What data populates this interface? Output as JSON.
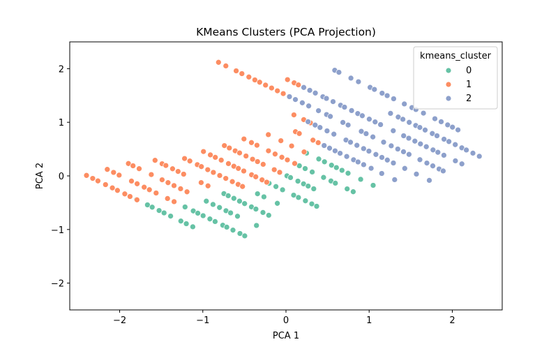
{
  "chart_data": {
    "type": "scatter",
    "title": "KMeans Clusters (PCA Projection)",
    "xlabel": "PCA 1",
    "ylabel": "PCA 2",
    "xlim": [
      -2.6,
      2.6
    ],
    "ylim": [
      -2.5,
      2.5
    ],
    "xticks": [
      -2,
      -1,
      0,
      1,
      2
    ],
    "yticks": [
      -2,
      -1,
      0,
      1,
      2
    ],
    "xtick_labels": [
      "−2",
      "−1",
      "0",
      "1",
      "2"
    ],
    "ytick_labels": [
      "−2",
      "−1",
      "0",
      "1",
      "2"
    ],
    "grid": false,
    "legend": {
      "title": "kmeans_cluster",
      "placement": "top-right",
      "entries": [
        {
          "name": "0",
          "color": "#66c2a5"
        },
        {
          "name": "1",
          "color": "#fc8d62"
        },
        {
          "name": "2",
          "color": "#8da0cb"
        }
      ]
    },
    "structure": {
      "slope": -0.75,
      "line_spacing_x": 0.297,
      "points_per_unit": 14
    },
    "series": [
      {
        "name": "0",
        "color": "#66c2a5",
        "lines": [
          {
            "intercept": -1.79,
            "x_range": [
              -1.8,
              -1.12
            ]
          },
          {
            "intercept": -1.49,
            "x_range": [
              -1.2,
              -0.42
            ]
          },
          {
            "intercept": -1.19,
            "x_range": [
              -0.95,
              -0.36
            ]
          },
          {
            "intercept": -0.89,
            "x_range": [
              -0.76,
              -0.22
            ]
          },
          {
            "intercept": -0.59,
            "x_range": [
              -0.35,
              -0.1
            ]
          },
          {
            "intercept": -0.29,
            "x_range": [
              -0.2,
              0.38
            ]
          },
          {
            "intercept": 0.01,
            "x_range": [
              0.0,
              0.55
            ]
          },
          {
            "intercept": 0.31,
            "x_range": [
              0.1,
              0.82
            ]
          },
          {
            "intercept": 0.61,
            "x_range": [
              0.25,
              1.05
            ]
          }
        ]
      },
      {
        "name": "1",
        "color": "#fc8d62",
        "lines": [
          {
            "intercept": -1.79,
            "x_range": [
              -2.4,
              -1.8
            ]
          },
          {
            "intercept": -1.49,
            "x_range": [
              -2.15,
              -1.35
            ]
          },
          {
            "intercept": -1.19,
            "x_range": [
              -1.9,
              -1.2
            ]
          },
          {
            "intercept": -0.89,
            "x_range": [
              -1.57,
              -0.95
            ]
          },
          {
            "intercept": -0.59,
            "x_range": [
              -1.28,
              -0.52
            ]
          },
          {
            "intercept": -0.29,
            "x_range": [
              -1.05,
              -0.22
            ]
          },
          {
            "intercept": 0.01,
            "x_range": [
              -0.75,
              0.0
            ]
          },
          {
            "intercept": 0.31,
            "x_range": [
              -0.5,
              0.1
            ]
          },
          {
            "intercept": 0.61,
            "x_range": [
              -0.2,
              0.22
            ]
          },
          {
            "intercept": 0.91,
            "x_range": [
              0.1,
              0.45
            ]
          },
          {
            "intercept": 1.21,
            "x_range": [
              0.03,
              0.28
            ]
          },
          {
            "intercept": 1.51,
            "x_range": [
              -0.8,
              0.05
            ]
          },
          {
            "intercept": 1.81,
            "x_range": [
              0.02,
              0.22
            ]
          }
        ]
      },
      {
        "name": "2",
        "color": "#8da0cb",
        "lines": [
          {
            "intercept": 0.91,
            "x_range": [
              0.45,
              1.3
            ]
          },
          {
            "intercept": 1.21,
            "x_range": [
              0.28,
              1.72
            ]
          },
          {
            "intercept": 1.51,
            "x_range": [
              0.05,
              1.9
            ]
          },
          {
            "intercept": 1.81,
            "x_range": [
              0.22,
              2.12
            ]
          },
          {
            "intercept": 2.11,
            "x_range": [
              1.27,
              2.38
            ]
          },
          {
            "intercept": 2.41,
            "x_range": [
              0.5,
              2.08
            ]
          }
        ]
      }
    ]
  }
}
